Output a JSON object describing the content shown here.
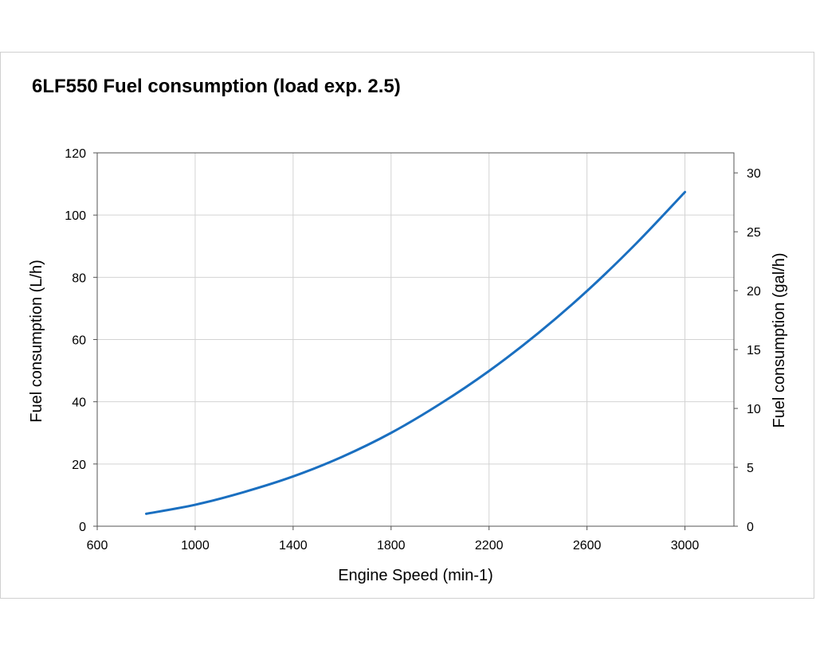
{
  "chart_data": {
    "type": "line",
    "title": "6LF550 Fuel consumption (load exp. 2.5)",
    "xlabel": "Engine Speed (min-1)",
    "ylabel": "Fuel consumption (L/h)",
    "y2label": "Fuel consumption (gal/h)",
    "xlim": [
      600,
      3200
    ],
    "ylim": [
      0,
      120
    ],
    "y2lim": [
      0,
      31.7
    ],
    "xticks": [
      600,
      1000,
      1400,
      1800,
      2200,
      2600,
      3000
    ],
    "yticks": [
      0,
      20,
      40,
      60,
      80,
      100,
      120
    ],
    "y2ticks": [
      0,
      5,
      10,
      15,
      20,
      25,
      30
    ],
    "grid": true,
    "line_color": "#1a6fc0",
    "series": [
      {
        "x": [
          800,
          1000,
          1200,
          1400,
          1600,
          1800,
          2000,
          2200,
          2400,
          2600,
          2800,
          3000
        ],
        "y": [
          4.0,
          6.9,
          11.0,
          16.0,
          22.3,
          30.0,
          39.3,
          49.9,
          62.0,
          75.6,
          90.8,
          107.4
        ]
      }
    ]
  }
}
